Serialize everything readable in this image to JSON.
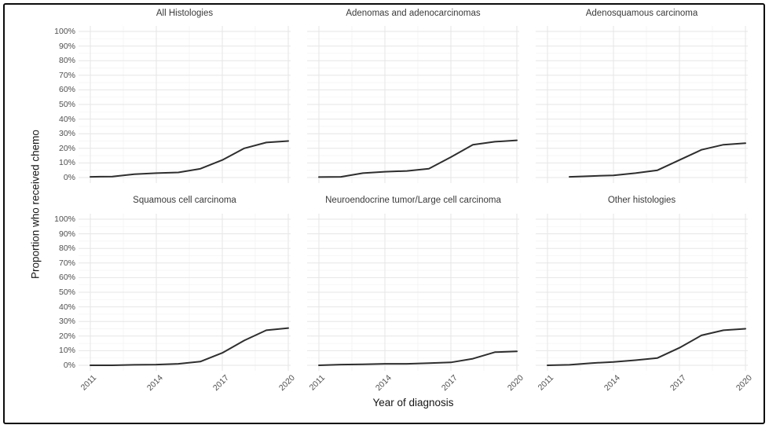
{
  "figure": {
    "y_axis_title": "Proportion who received chemo",
    "x_axis_title": "Year of diagnosis"
  },
  "axes": {
    "x_tick_labels": [
      "2011",
      "2014",
      "2017",
      "2020"
    ],
    "x_tick_years": [
      2011,
      2014,
      2017,
      2020
    ],
    "x_minor_years": [
      2012.5,
      2015.5,
      2018.5
    ],
    "y_tick_labels": [
      "0%",
      "10%",
      "20%",
      "30%",
      "40%",
      "50%",
      "60%",
      "70%",
      "80%",
      "90%",
      "100%"
    ],
    "y_tick_values": [
      0,
      10,
      20,
      30,
      40,
      50,
      60,
      70,
      80,
      90,
      100
    ],
    "y_minor_values": [
      5,
      15,
      25,
      35,
      45,
      55,
      65,
      75,
      85,
      95
    ],
    "ylim": [
      0,
      100
    ],
    "xlim": [
      2011,
      2020
    ],
    "grid": "major and minor, light gray, no axis lines"
  },
  "style": {
    "background": "#ffffff",
    "border": "#0c0c0c",
    "line": "#2e2e2e",
    "grid_major": "#e6e6e6",
    "grid_minor": "#f3f3f3",
    "tick_text": "#4f4f4f",
    "panel_title_text": "#3a3a3a",
    "axis_title_text": "#151515"
  },
  "chart_data": [
    {
      "type": "line",
      "title": "All Histologies",
      "xlabel": "Year of diagnosis",
      "ylabel": "Proportion who received chemo",
      "ylim": [
        0,
        100
      ],
      "x": [
        2011,
        2012,
        2013,
        2014,
        2015,
        2016,
        2017,
        2018,
        2019,
        2020
      ],
      "y": [
        0.5,
        0.7,
        2.3,
        3,
        3.5,
        6,
        12,
        20,
        24,
        25
      ]
    },
    {
      "type": "line",
      "title": "Adenomas and adenocarcinomas",
      "xlabel": "Year of diagnosis",
      "ylabel": "Proportion who received chemo",
      "ylim": [
        0,
        100
      ],
      "x": [
        2011,
        2012,
        2013,
        2014,
        2015,
        2016,
        2017,
        2018,
        2019,
        2020
      ],
      "y": [
        0.3,
        0.5,
        3,
        4,
        4.5,
        6,
        14,
        22.5,
        24.5,
        25.5
      ]
    },
    {
      "type": "line",
      "title": "Adenosquamous carcinoma",
      "xlabel": "Year of diagnosis",
      "ylabel": "Proportion who received chemo",
      "ylim": [
        0,
        100
      ],
      "x": [
        2012,
        2013,
        2014,
        2015,
        2016,
        2017,
        2018,
        2019,
        2020
      ],
      "y": [
        0.5,
        1,
        1.5,
        3,
        5,
        12,
        19,
        22.5,
        23.5
      ]
    },
    {
      "type": "line",
      "title": "Squamous cell carcinoma",
      "xlabel": "Year of diagnosis",
      "ylabel": "Proportion who received chemo",
      "ylim": [
        0,
        100
      ],
      "x": [
        2011,
        2012,
        2013,
        2014,
        2015,
        2016,
        2017,
        2018,
        2019,
        2020
      ],
      "y": [
        0,
        0,
        0.3,
        0.5,
        1,
        2.5,
        8.5,
        17,
        24,
        25.5
      ]
    },
    {
      "type": "line",
      "title": "Neuroendocrine tumor/Large cell carcinoma",
      "xlabel": "Year of diagnosis",
      "ylabel": "Proportion who received chemo",
      "ylim": [
        0,
        100
      ],
      "x": [
        2011,
        2012,
        2013,
        2014,
        2015,
        2016,
        2017,
        2018,
        2019,
        2020
      ],
      "y": [
        0,
        0.5,
        0.7,
        1,
        1,
        1.5,
        2,
        4.5,
        9,
        9.5
      ]
    },
    {
      "type": "line",
      "title": "Other histologies",
      "xlabel": "Year of diagnosis",
      "ylabel": "Proportion who received chemo",
      "ylim": [
        0,
        100
      ],
      "x": [
        2011,
        2012,
        2013,
        2014,
        2015,
        2016,
        2017,
        2018,
        2019,
        2020
      ],
      "y": [
        0,
        0.3,
        1.5,
        2.3,
        3.5,
        5,
        12,
        20.5,
        24,
        25
      ]
    }
  ]
}
